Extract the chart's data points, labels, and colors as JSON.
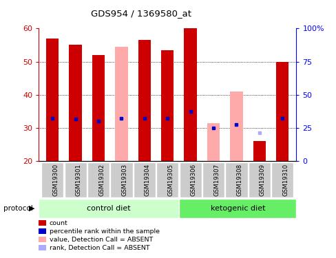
{
  "title": "GDS954 / 1369580_at",
  "samples": [
    "GSM19300",
    "GSM19301",
    "GSM19302",
    "GSM19303",
    "GSM19304",
    "GSM19305",
    "GSM19306",
    "GSM19307",
    "GSM19308",
    "GSM19309",
    "GSM19310"
  ],
  "red_values": [
    57,
    55,
    52,
    null,
    56.5,
    53.5,
    60,
    null,
    null,
    26,
    50
  ],
  "pink_values": [
    null,
    null,
    null,
    54.5,
    null,
    null,
    null,
    31.5,
    41,
    null,
    null
  ],
  "blue_values": [
    33,
    32.8,
    32,
    33,
    33,
    33,
    35,
    30,
    31,
    null,
    33
  ],
  "light_blue_values": [
    null,
    null,
    null,
    null,
    null,
    null,
    null,
    null,
    null,
    28.5,
    null
  ],
  "ylim_left": [
    20,
    60
  ],
  "ylim_right": [
    0,
    100
  ],
  "yticks_left": [
    20,
    30,
    40,
    50,
    60
  ],
  "ytick_labels_right": [
    "0",
    "25",
    "50",
    "75",
    "100%"
  ],
  "bar_width": 0.55,
  "red_color": "#CC0000",
  "pink_color": "#FFAAAA",
  "blue_color": "#0000CC",
  "light_blue_color": "#AAAAFF",
  "control_bg": "#CCFFCC",
  "ketogenic_bg": "#66EE66",
  "sample_bg": "#CCCCCC",
  "n_control": 6,
  "n_ketogenic": 5,
  "legend_items": [
    {
      "color": "#CC0000",
      "label": "count"
    },
    {
      "color": "#0000CC",
      "label": "percentile rank within the sample"
    },
    {
      "color": "#FFAAAA",
      "label": "value, Detection Call = ABSENT"
    },
    {
      "color": "#AAAAFF",
      "label": "rank, Detection Call = ABSENT"
    }
  ]
}
